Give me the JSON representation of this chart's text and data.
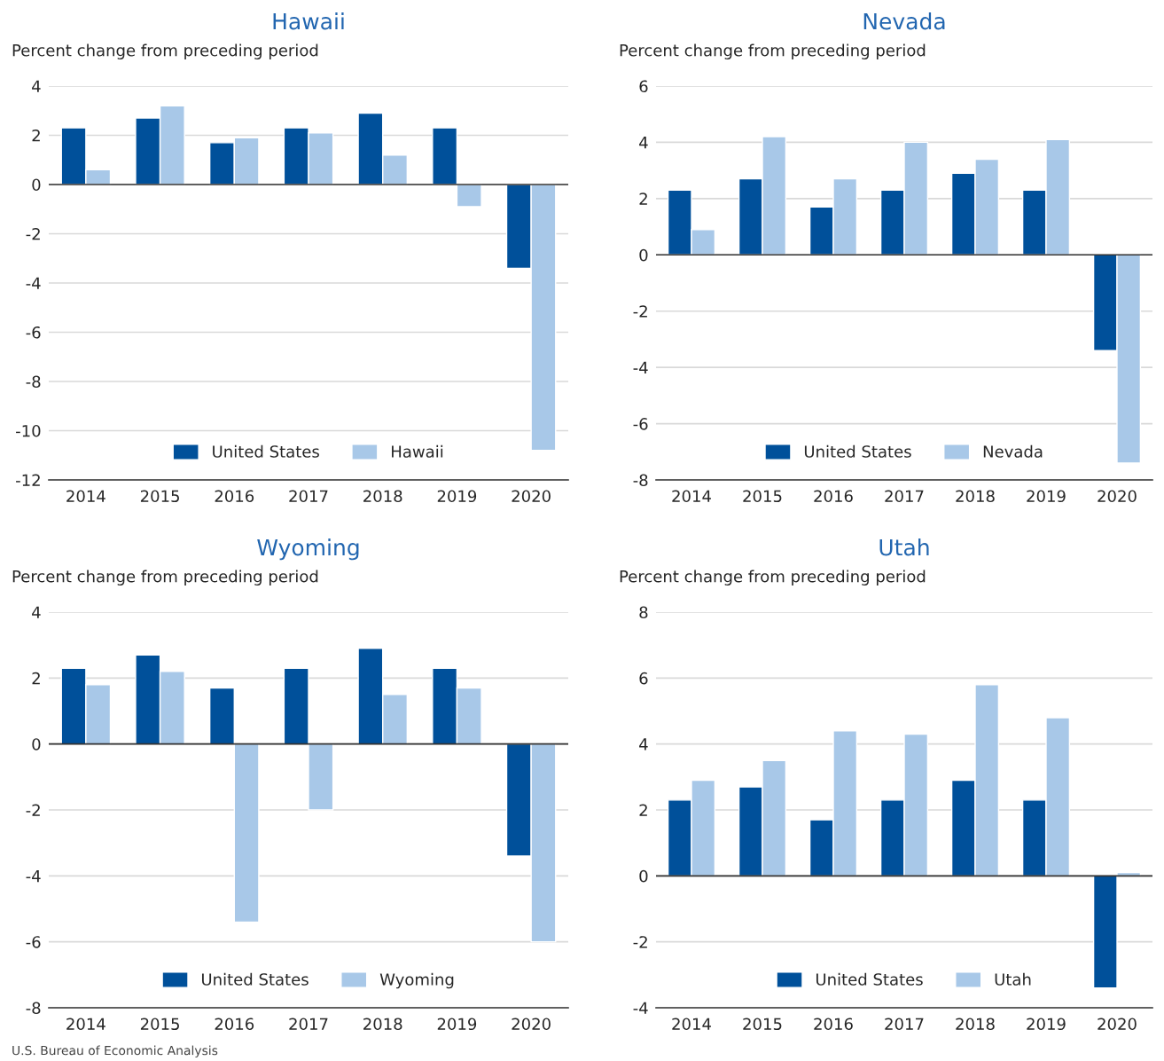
{
  "chart_data": [
    {
      "type": "bar",
      "title": "Hawaii",
      "ylabel": "Percent change from preceding period",
      "categories": [
        "2014",
        "2015",
        "2016",
        "2017",
        "2018",
        "2019",
        "2020"
      ],
      "series": [
        {
          "name": "United States",
          "color": "#00509a",
          "values": [
            2.3,
            2.7,
            1.7,
            2.3,
            2.9,
            2.3,
            -3.4
          ]
        },
        {
          "name": "Hawaii",
          "color": "#a8c8e8",
          "values": [
            0.6,
            3.2,
            1.9,
            2.1,
            1.2,
            -0.9,
            -10.8
          ]
        }
      ],
      "ylim": [
        -12,
        4
      ],
      "yticks": [
        -12,
        -10,
        -8,
        -6,
        -4,
        -2,
        0,
        2,
        4
      ],
      "grid": "y",
      "legend": "bottom"
    },
    {
      "type": "bar",
      "title": "Nevada",
      "ylabel": "Percent change from preceding period",
      "categories": [
        "2014",
        "2015",
        "2016",
        "2017",
        "2018",
        "2019",
        "2020"
      ],
      "series": [
        {
          "name": "United States",
          "color": "#00509a",
          "values": [
            2.3,
            2.7,
            1.7,
            2.3,
            2.9,
            2.3,
            -3.4
          ]
        },
        {
          "name": "Nevada",
          "color": "#a8c8e8",
          "values": [
            0.9,
            4.2,
            2.7,
            4.0,
            3.4,
            4.1,
            -7.4
          ]
        }
      ],
      "ylim": [
        -8,
        6
      ],
      "yticks": [
        -8,
        -6,
        -4,
        -2,
        0,
        2,
        4,
        6
      ],
      "grid": "y",
      "legend": "bottom"
    },
    {
      "type": "bar",
      "title": "Wyoming",
      "ylabel": "Percent change from preceding period",
      "categories": [
        "2014",
        "2015",
        "2016",
        "2017",
        "2018",
        "2019",
        "2020"
      ],
      "series": [
        {
          "name": "United States",
          "color": "#00509a",
          "values": [
            2.3,
            2.7,
            1.7,
            2.3,
            2.9,
            2.3,
            -3.4
          ]
        },
        {
          "name": "Wyoming",
          "color": "#a8c8e8",
          "values": [
            1.8,
            2.2,
            -5.4,
            -2.0,
            1.5,
            1.7,
            -6.0
          ]
        }
      ],
      "ylim": [
        -8,
        4
      ],
      "yticks": [
        -8,
        -6,
        -4,
        -2,
        0,
        2,
        4
      ],
      "grid": "y",
      "legend": "bottom",
      "annotations": [
        "U.S. Bureau of Economic Analysis"
      ]
    },
    {
      "type": "bar",
      "title": "Utah",
      "ylabel": "Percent change from preceding period",
      "categories": [
        "2014",
        "2015",
        "2016",
        "2017",
        "2018",
        "2019",
        "2020"
      ],
      "series": [
        {
          "name": "United States",
          "color": "#00509a",
          "values": [
            2.3,
            2.7,
            1.7,
            2.3,
            2.9,
            2.3,
            -3.4
          ]
        },
        {
          "name": "Utah",
          "color": "#a8c8e8",
          "values": [
            2.9,
            3.5,
            4.4,
            4.3,
            5.8,
            4.8,
            0.1
          ]
        }
      ],
      "ylim": [
        -4,
        8
      ],
      "yticks": [
        -4,
        -2,
        0,
        2,
        4,
        6,
        8
      ],
      "grid": "y",
      "legend": "bottom"
    }
  ]
}
